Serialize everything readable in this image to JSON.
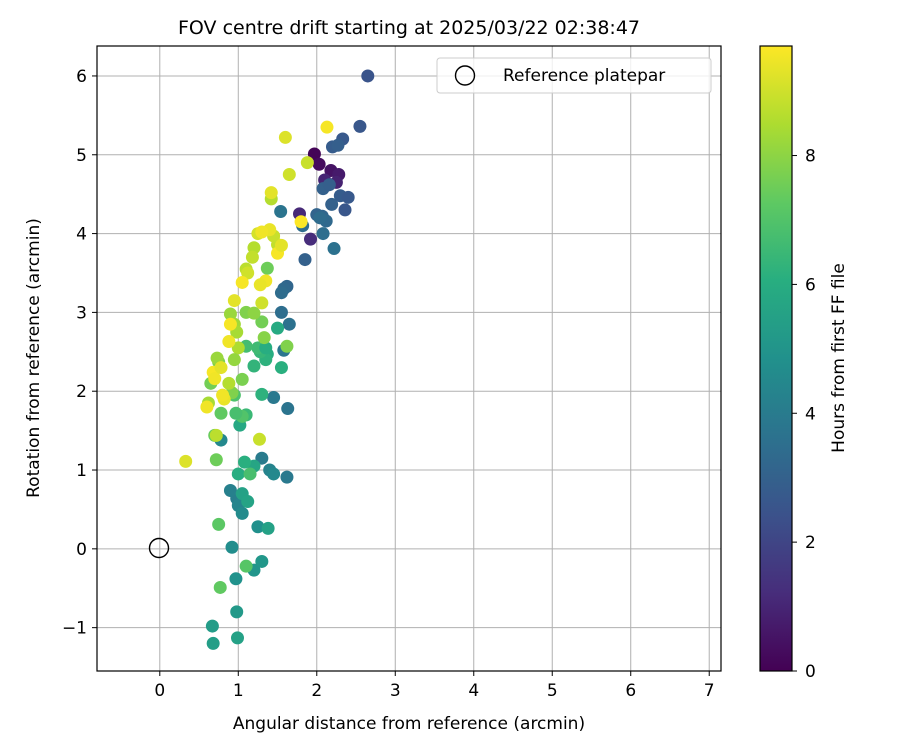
{
  "chart_data": {
    "type": "scatter",
    "title": "FOV centre drift starting at 2025/03/22 02:38:47",
    "xlabel": "Angular distance from reference (arcmin)",
    "ylabel": "Rotation from reference (arcmin)",
    "xlim": [
      -0.8,
      7.15
    ],
    "ylim": [
      -1.55,
      6.38
    ],
    "xticks": [
      0,
      1,
      2,
      3,
      4,
      5,
      6,
      7
    ],
    "yticks": [
      -1,
      0,
      1,
      2,
      3,
      4,
      5,
      6
    ],
    "xtick_labels": [
      "0",
      "1",
      "2",
      "3",
      "4",
      "5",
      "6",
      "7"
    ],
    "ytick_labels": [
      "−1",
      "0",
      "1",
      "2",
      "3",
      "4",
      "5",
      "6"
    ],
    "grid": true,
    "legend": {
      "placement": "upper-right",
      "entries": [
        "Reference platepar"
      ]
    },
    "colorbar": {
      "label": "Hours from first FF file",
      "range": [
        0,
        9.7
      ],
      "ticks": [
        0,
        2,
        4,
        6,
        8
      ],
      "tick_labels": [
        "0",
        "2",
        "4",
        "6",
        "8"
      ],
      "colormap": "viridis"
    },
    "reference_point": {
      "x": 0,
      "y": 0
    },
    "series": [
      {
        "points": [
          [
            1.97,
            5.01,
            0.1
          ],
          [
            2.03,
            4.88,
            0.3
          ],
          [
            2.18,
            4.8,
            0.5
          ],
          [
            2.28,
            4.75,
            0.7
          ],
          [
            2.25,
            4.65,
            0.9
          ],
          [
            2.1,
            4.68,
            1.0
          ],
          [
            1.78,
            4.25,
            1.1
          ],
          [
            1.92,
            3.93,
            1.2
          ],
          [
            2.65,
            6.0,
            2.5
          ],
          [
            2.55,
            5.36,
            2.6
          ],
          [
            2.33,
            5.2,
            2.7
          ],
          [
            2.2,
            5.1,
            2.8
          ],
          [
            2.27,
            5.12,
            2.9
          ],
          [
            2.08,
            4.57,
            3.0
          ],
          [
            2.16,
            4.62,
            2.9
          ],
          [
            2.3,
            4.48,
            2.8
          ],
          [
            2.4,
            4.46,
            2.7
          ],
          [
            2.36,
            4.3,
            2.6
          ],
          [
            2.19,
            4.37,
            3.0
          ],
          [
            2.0,
            4.24,
            3.1
          ],
          [
            2.07,
            4.22,
            3.2
          ],
          [
            2.12,
            4.16,
            3.3
          ],
          [
            2.04,
            4.2,
            3.4
          ],
          [
            2.08,
            4.0,
            3.5
          ],
          [
            2.22,
            3.81,
            3.6
          ],
          [
            1.85,
            3.67,
            3.0
          ],
          [
            1.54,
            4.28,
            3.7
          ],
          [
            1.82,
            4.1,
            3.4
          ],
          [
            1.62,
            3.33,
            3.2
          ],
          [
            1.58,
            3.3,
            3.3
          ],
          [
            1.55,
            3.25,
            3.4
          ],
          [
            1.55,
            3.0,
            3.5
          ],
          [
            1.65,
            2.85,
            3.6
          ],
          [
            1.58,
            2.52,
            3.8
          ],
          [
            1.45,
            1.92,
            3.9
          ],
          [
            1.63,
            1.78,
            3.7
          ],
          [
            1.4,
            1.0,
            4.3
          ],
          [
            1.45,
            0.95,
            4.5
          ],
          [
            1.62,
            0.91,
            3.9
          ],
          [
            1.3,
            1.15,
            4.0
          ],
          [
            0.98,
            0.64,
            4.1
          ],
          [
            0.9,
            0.74,
            4.2
          ],
          [
            1.0,
            0.55,
            4.4
          ],
          [
            1.05,
            0.45,
            4.6
          ],
          [
            1.25,
            0.28,
            4.8
          ],
          [
            0.92,
            0.02,
            4.7
          ],
          [
            0.97,
            -0.38,
            4.9
          ],
          [
            1.2,
            -0.27,
            5.0
          ],
          [
            1.3,
            -0.16,
            5.1
          ],
          [
            0.98,
            -0.8,
            5.2
          ],
          [
            0.67,
            -0.98,
            5.3
          ],
          [
            0.68,
            -1.2,
            5.4
          ],
          [
            0.99,
            -1.13,
            5.5
          ],
          [
            0.78,
            1.38,
            4.5
          ],
          [
            1.05,
            0.7,
            5.5
          ],
          [
            1.12,
            0.6,
            5.6
          ],
          [
            1.2,
            1.05,
            5.7
          ],
          [
            1.38,
            0.26,
            5.5
          ],
          [
            1.0,
            0.95,
            6.0
          ],
          [
            1.08,
            1.1,
            6.1
          ],
          [
            1.02,
            1.57,
            5.8
          ],
          [
            1.5,
            2.8,
            5.9
          ],
          [
            1.37,
            2.47,
            6.0
          ],
          [
            1.55,
            2.3,
            6.1
          ],
          [
            1.3,
            1.96,
            6.2
          ],
          [
            1.2,
            2.32,
            6.3
          ],
          [
            1.35,
            2.4,
            6.2
          ],
          [
            1.28,
            2.5,
            6.4
          ],
          [
            1.25,
            2.55,
            6.6
          ],
          [
            1.35,
            2.55,
            6.0
          ],
          [
            1.1,
            2.57,
            6.7
          ],
          [
            1.15,
            0.95,
            6.8
          ],
          [
            1.1,
            1.7,
            6.5
          ],
          [
            1.05,
            1.68,
            7.0
          ],
          [
            0.95,
            1.95,
            6.9
          ],
          [
            0.97,
            1.72,
            6.8
          ],
          [
            1.1,
            -0.22,
            7.1
          ],
          [
            0.75,
            0.31,
            7.2
          ],
          [
            0.77,
            -0.49,
            7.3
          ],
          [
            0.7,
            1.44,
            7.4
          ],
          [
            0.72,
            1.13,
            7.5
          ],
          [
            0.65,
            2.1,
            7.6
          ],
          [
            0.78,
            1.72,
            7.3
          ],
          [
            0.75,
            2.37,
            7.7
          ],
          [
            0.92,
            1.98,
            7.8
          ],
          [
            1.05,
            2.15,
            7.7
          ],
          [
            1.3,
            2.88,
            7.6
          ],
          [
            1.33,
            2.68,
            7.9
          ],
          [
            1.37,
            3.56,
            7.5
          ],
          [
            1.62,
            2.57,
            7.8
          ],
          [
            1.1,
            3.0,
            7.8
          ],
          [
            1.2,
            2.99,
            8.0
          ],
          [
            0.9,
            2.98,
            8.2
          ],
          [
            0.95,
            2.85,
            8.3
          ],
          [
            0.98,
            2.75,
            8.4
          ],
          [
            1.0,
            2.55,
            8.5
          ],
          [
            0.95,
            2.4,
            8.1
          ],
          [
            0.88,
            2.1,
            8.6
          ],
          [
            0.62,
            1.85,
            8.4
          ],
          [
            0.72,
            1.44,
            8.7
          ],
          [
            0.73,
            2.42,
            8.2
          ],
          [
            1.42,
            4.44,
            8.6
          ],
          [
            1.5,
            3.86,
            8.8
          ],
          [
            1.45,
            3.97,
            8.9
          ],
          [
            1.3,
            3.12,
            9.0
          ],
          [
            1.27,
            1.39,
            8.9
          ],
          [
            0.33,
            1.11,
            9.2
          ],
          [
            1.2,
            3.82,
            8.6
          ],
          [
            1.1,
            3.55,
            8.7
          ],
          [
            1.18,
            3.7,
            8.8
          ],
          [
            1.12,
            3.5,
            9.0
          ],
          [
            1.25,
            4.0,
            9.1
          ],
          [
            1.6,
            5.22,
            9.2
          ],
          [
            1.65,
            4.75,
            9.0
          ],
          [
            1.88,
            4.9,
            8.9
          ],
          [
            1.42,
            4.52,
            9.3
          ],
          [
            1.4,
            4.05,
            9.4
          ],
          [
            1.3,
            4.02,
            9.5
          ],
          [
            1.05,
            3.38,
            9.6
          ],
          [
            1.35,
            3.4,
            9.5
          ],
          [
            1.28,
            3.35,
            9.4
          ],
          [
            0.95,
            3.15,
            9.3
          ],
          [
            0.9,
            2.85,
            9.6
          ],
          [
            0.88,
            2.63,
            9.5
          ],
          [
            0.82,
            1.9,
            9.4
          ],
          [
            0.8,
            1.95,
            9.5
          ],
          [
            0.68,
            2.24,
            9.6
          ],
          [
            0.7,
            2.16,
            9.5
          ],
          [
            0.78,
            2.3,
            9.3
          ],
          [
            0.6,
            1.8,
            9.5
          ],
          [
            2.13,
            5.35,
            9.6
          ],
          [
            1.8,
            4.15,
            9.7
          ],
          [
            1.5,
            3.75,
            9.6
          ],
          [
            1.55,
            3.85,
            9.3
          ]
        ]
      }
    ]
  }
}
